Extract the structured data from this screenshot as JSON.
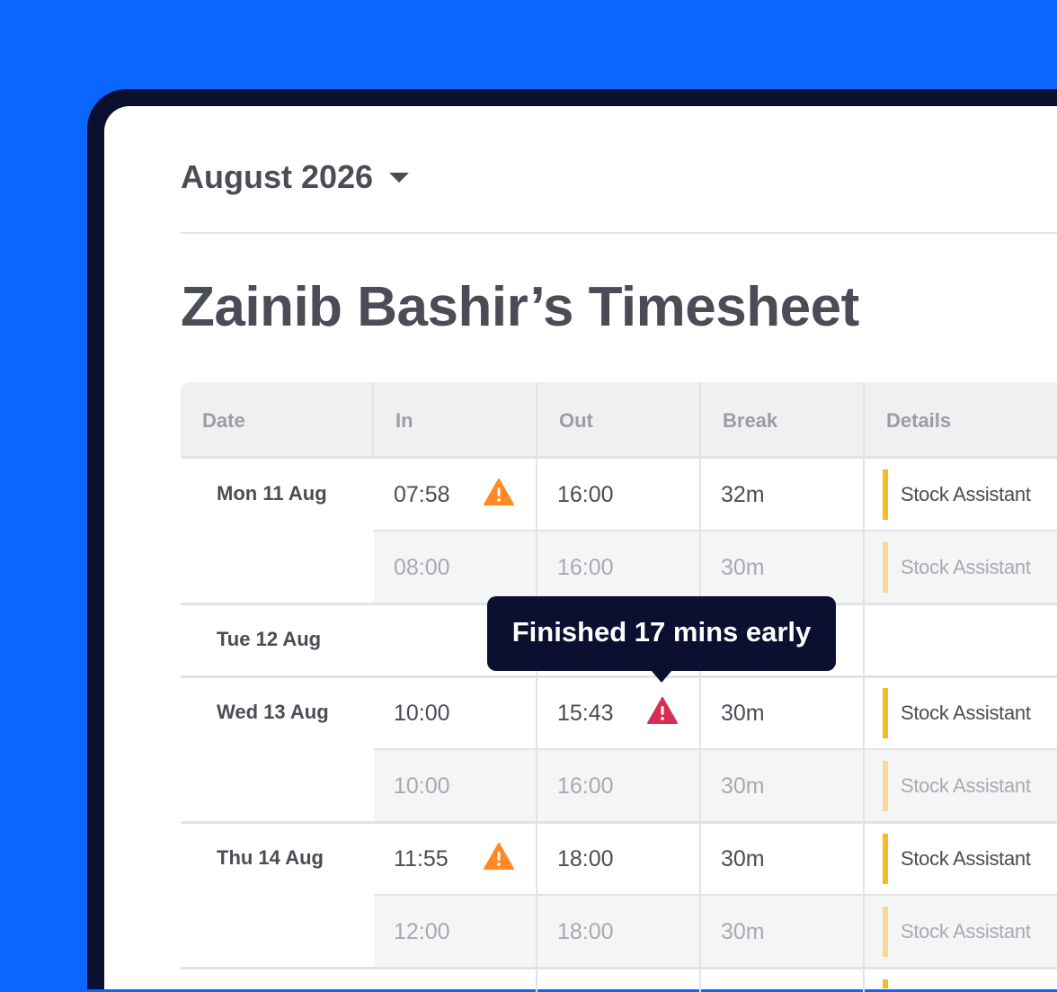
{
  "period": {
    "label": "August 2026"
  },
  "page_title": "Zainib Bashir’s Timesheet",
  "columns": [
    "Date",
    "In",
    "Out",
    "Break",
    "Details"
  ],
  "days": [
    {
      "date": "Mon 11 Aug",
      "actual": {
        "in": "07:58",
        "in_warning": "orange",
        "out": "16:00",
        "break": "32m",
        "details": "Stock Assistant"
      },
      "planned": {
        "in": "08:00",
        "out": "16:00",
        "break": "30m",
        "details": "Stock Assistant"
      }
    },
    {
      "date": "Tue 12 Aug"
    },
    {
      "date": "Wed 13 Aug",
      "actual": {
        "in": "10:00",
        "out": "15:43",
        "out_warning": "red",
        "break": "30m",
        "details": "Stock Assistant"
      },
      "planned": {
        "in": "10:00",
        "out": "16:00",
        "break": "30m",
        "details": "Stock Assistant"
      }
    },
    {
      "date": "Thu 14 Aug",
      "actual": {
        "in": "11:55",
        "in_warning": "orange",
        "out": "18:00",
        "break": "30m",
        "details": "Stock Assistant"
      },
      "planned": {
        "in": "12:00",
        "out": "18:00",
        "break": "30m",
        "details": "Stock Assistant"
      }
    }
  ],
  "tooltip": "Finished 17 mins early",
  "colors": {
    "background": "#0a66ff",
    "frame": "#0b1030",
    "warning_orange": "#ff8a24",
    "warning_red": "#d92d53",
    "role_bar": "#f7b924"
  }
}
